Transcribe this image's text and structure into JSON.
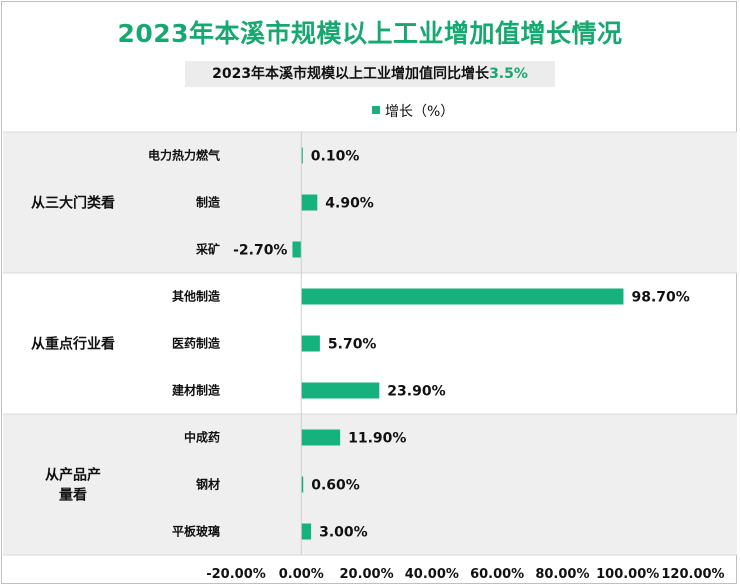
{
  "title": "2023年本溪市规模以上工业增加值增长情况",
  "subtitle": {
    "text": "2023年本溪市规模以上工业增加值同比增长",
    "highlight": "3.5%"
  },
  "colors": {
    "bar": "#16b27e",
    "title": "#16a870",
    "band": "#efefef",
    "axis": "#d0d0d0"
  },
  "chart_data": {
    "type": "bar",
    "orientation": "horizontal",
    "legend": {
      "position": "top",
      "entries": [
        "增长（%）"
      ]
    },
    "series": [
      {
        "name": "增长（%）",
        "color": "#16b27e"
      }
    ],
    "groups": [
      {
        "label": "从三大门类看",
        "categories": [
          {
            "label": "电力热力燃气",
            "value": 0.1,
            "text": "0.10%"
          },
          {
            "label": "制造",
            "value": 4.9,
            "text": "4.90%"
          },
          {
            "label": "采矿",
            "value": -2.7,
            "text": "-2.70%"
          }
        ]
      },
      {
        "label": "从重点行业看",
        "categories": [
          {
            "label": "其他制造",
            "value": 98.7,
            "text": "98.70%"
          },
          {
            "label": "医药制造",
            "value": 5.7,
            "text": "5.70%"
          },
          {
            "label": "建材制造",
            "value": 23.9,
            "text": "23.90%"
          }
        ]
      },
      {
        "label": "从产品产量看",
        "label_lines": [
          "从产品产",
          "量看"
        ],
        "categories": [
          {
            "label": "中成药",
            "value": 11.9,
            "text": "11.90%"
          },
          {
            "label": "钢材",
            "value": 0.6,
            "text": "0.60%"
          },
          {
            "label": "平板玻璃",
            "value": 3.0,
            "text": "3.00%"
          }
        ]
      }
    ],
    "xlim": [
      -20,
      120
    ],
    "xticks": [
      {
        "value": -20,
        "label": "-20.00%"
      },
      {
        "value": 0,
        "label": "0.00%"
      },
      {
        "value": 20,
        "label": "20.00%"
      },
      {
        "value": 40,
        "label": "40.00%"
      },
      {
        "value": 60,
        "label": "60.00%"
      },
      {
        "value": 80,
        "label": "80.00%"
      },
      {
        "value": 100,
        "label": "100.00%"
      },
      {
        "value": 120,
        "label": "120.00%"
      }
    ],
    "grid": false
  }
}
